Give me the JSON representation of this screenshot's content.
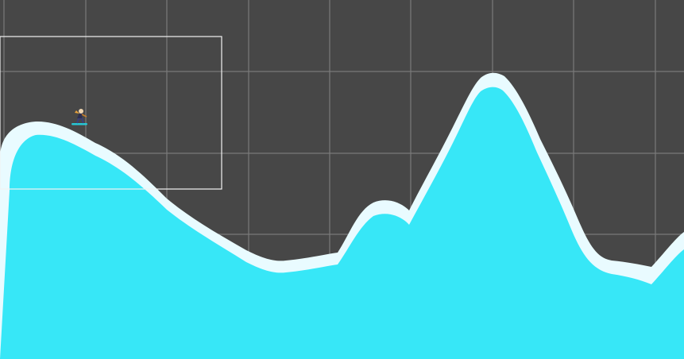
{
  "scene": {
    "background_color": "#474747",
    "grid_color": "#7a7a7a",
    "terrain_fill_color": "#37e7f7",
    "terrain_edge_color": "#e9fbff",
    "selection_outline_color": "#f2f2f2",
    "player_icon": "snowboarder-icon",
    "board_color": "#27c7d4"
  }
}
